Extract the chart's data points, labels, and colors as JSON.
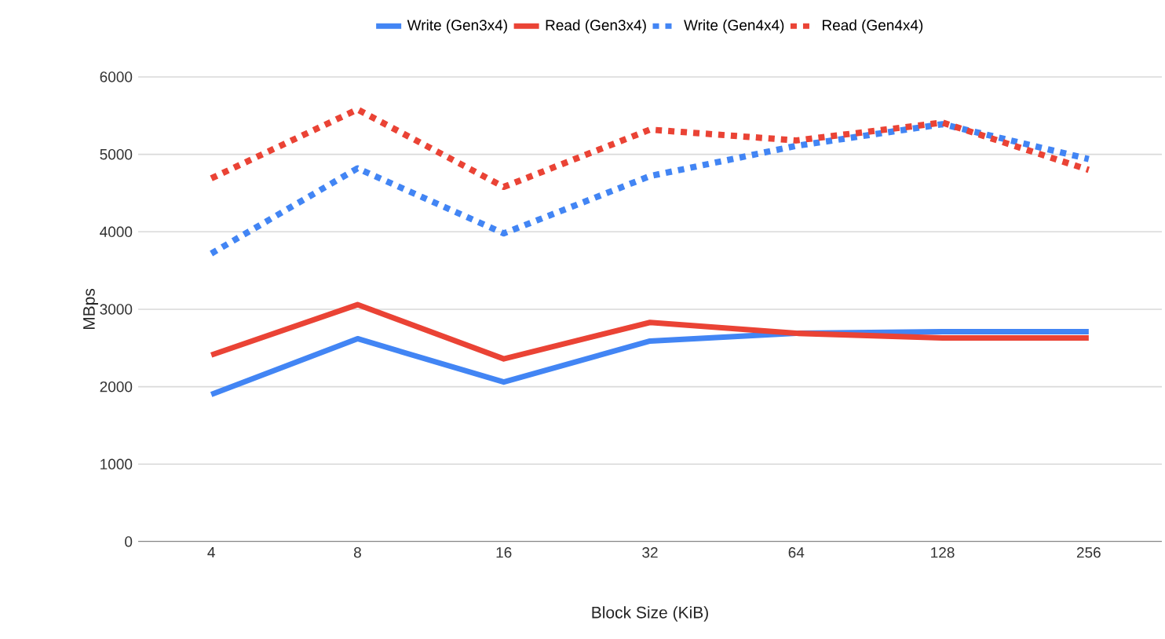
{
  "chart_data": {
    "type": "line",
    "xlabel": "Block Size (KiB)",
    "ylabel": "MBps",
    "categories": [
      "4",
      "8",
      "16",
      "32",
      "64",
      "128",
      "256"
    ],
    "series": [
      {
        "name": "Write (Gen3x4)",
        "color": "#4285f4",
        "line_style": "solid",
        "values": [
          1900,
          2620,
          2060,
          2590,
          2690,
          2710,
          2710
        ]
      },
      {
        "name": "Read (Gen3x4)",
        "color": "#ea4335",
        "line_style": "solid",
        "values": [
          2410,
          3060,
          2360,
          2830,
          2690,
          2630,
          2630
        ]
      },
      {
        "name": "Write (Gen4x4)",
        "color": "#4285f4",
        "line_style": "dotted",
        "values": [
          3720,
          4820,
          3980,
          4720,
          5110,
          5390,
          4940
        ]
      },
      {
        "name": "Read (Gen4x4)",
        "color": "#ea4335",
        "line_style": "dotted",
        "values": [
          4690,
          5580,
          4580,
          5320,
          5180,
          5410,
          4800
        ]
      }
    ],
    "ylim": [
      0,
      6000
    ],
    "yticks": [
      0,
      1000,
      2000,
      3000,
      4000,
      5000,
      6000
    ],
    "grid": "y",
    "legend": "top",
    "marker": "none"
  }
}
